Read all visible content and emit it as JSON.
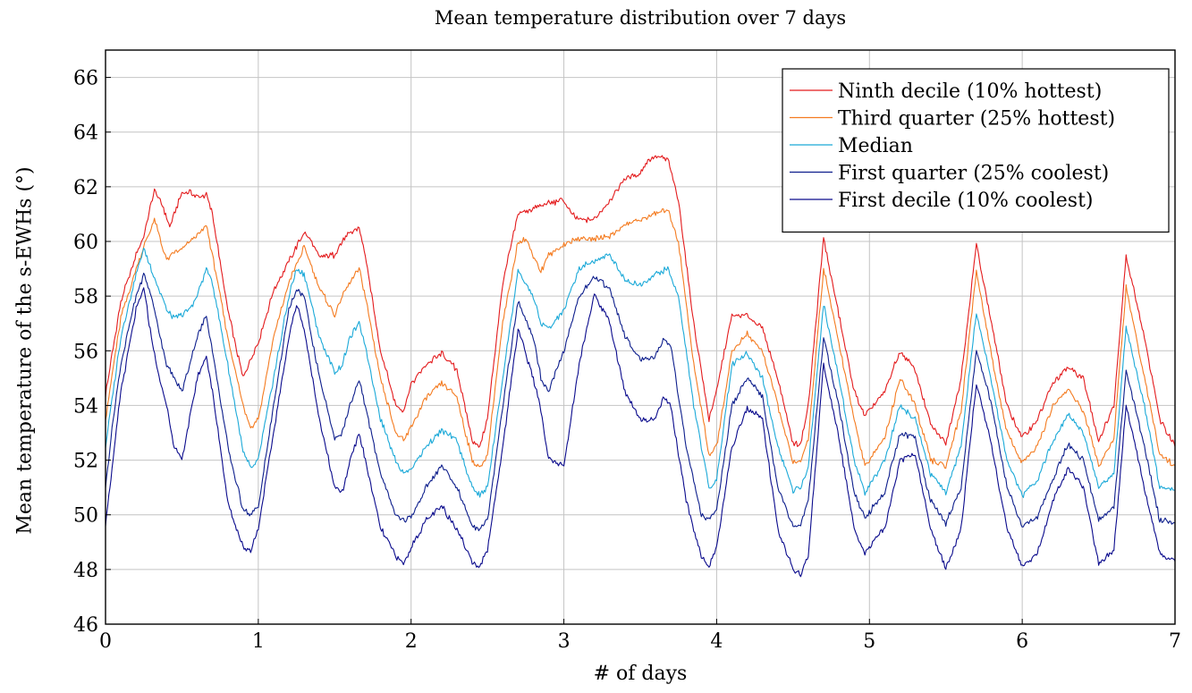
{
  "chart_data": {
    "type": "line",
    "title": "Mean temperature distribution over 7 days",
    "xlabel": "# of days",
    "ylabel": "Mean temperature of the s-EWHs (°)",
    "xlim": [
      0,
      7
    ],
    "ylim": [
      46,
      67
    ],
    "xticks": [
      0,
      1,
      2,
      3,
      4,
      5,
      6,
      7
    ],
    "yticks": [
      46,
      48,
      50,
      52,
      54,
      56,
      58,
      60,
      62,
      64,
      66
    ],
    "grid": true,
    "legend_position": "top-right",
    "series": [
      {
        "name": "Ninth decile (10% hottest)",
        "color": "#e31a1c",
        "x": [
          0,
          0.1,
          0.2,
          0.25,
          0.32,
          0.38,
          0.42,
          0.5,
          0.55,
          0.6,
          0.66,
          0.7,
          0.8,
          0.9,
          0.95,
          1.0,
          1.1,
          1.2,
          1.3,
          1.35,
          1.4,
          1.45,
          1.5,
          1.55,
          1.6,
          1.66,
          1.7,
          1.8,
          1.9,
          1.95,
          2.0,
          2.1,
          2.2,
          2.3,
          2.4,
          2.45,
          2.5,
          2.6,
          2.7,
          2.8,
          2.9,
          3.0,
          3.05,
          3.1,
          3.2,
          3.3,
          3.4,
          3.5,
          3.55,
          3.6,
          3.68,
          3.75,
          3.85,
          3.95,
          4.0,
          4.05,
          4.1,
          4.2,
          4.3,
          4.4,
          4.5,
          4.55,
          4.6,
          4.7,
          4.8,
          4.9,
          4.97,
          5.1,
          5.2,
          5.3,
          5.4,
          5.5,
          5.6,
          5.7,
          5.8,
          5.9,
          6.0,
          6.1,
          6.2,
          6.3,
          6.4,
          6.5,
          6.6,
          6.68,
          6.8,
          6.9,
          7.0
        ],
        "values": [
          54.4,
          57.8,
          59.5,
          60.2,
          61.9,
          61.2,
          60.5,
          61.8,
          61.8,
          61.6,
          61.7,
          61.0,
          57.5,
          55.0,
          55.7,
          56.3,
          58.2,
          59.3,
          60.3,
          60.0,
          59.4,
          59.5,
          59.5,
          60.0,
          60.3,
          60.5,
          59.5,
          56.0,
          54.0,
          53.8,
          54.8,
          55.5,
          55.9,
          55.3,
          52.7,
          52.5,
          53.5,
          58.5,
          61.0,
          61.2,
          61.4,
          61.5,
          61.0,
          60.8,
          60.8,
          61.5,
          62.3,
          62.5,
          63.0,
          63.1,
          63.0,
          61.5,
          57.0,
          53.5,
          54.5,
          56.0,
          57.3,
          57.3,
          56.8,
          55.0,
          52.6,
          52.6,
          54.0,
          60.1,
          57.3,
          54.5,
          53.6,
          54.5,
          56.0,
          55.3,
          53.3,
          52.6,
          55.0,
          59.9,
          57.0,
          54.0,
          52.8,
          53.5,
          54.8,
          55.4,
          55.0,
          52.7,
          54.0,
          59.5,
          56.5,
          53.5,
          52.5
        ]
      },
      {
        "name": "Third quarter (25% hottest)",
        "color": "#f47b20",
        "x": [
          0,
          0.1,
          0.2,
          0.25,
          0.32,
          0.4,
          0.45,
          0.5,
          0.55,
          0.6,
          0.66,
          0.7,
          0.8,
          0.9,
          0.95,
          1.0,
          1.1,
          1.2,
          1.3,
          1.4,
          1.45,
          1.5,
          1.55,
          1.6,
          1.66,
          1.7,
          1.8,
          1.9,
          1.95,
          2.0,
          2.1,
          2.2,
          2.3,
          2.4,
          2.45,
          2.5,
          2.6,
          2.7,
          2.75,
          2.8,
          2.85,
          2.9,
          3.0,
          3.1,
          3.2,
          3.3,
          3.4,
          3.5,
          3.6,
          3.68,
          3.75,
          3.85,
          3.95,
          4.0,
          4.1,
          4.2,
          4.3,
          4.4,
          4.5,
          4.55,
          4.6,
          4.7,
          4.8,
          4.9,
          4.97,
          5.1,
          5.2,
          5.3,
          5.4,
          5.5,
          5.6,
          5.7,
          5.8,
          5.9,
          6.0,
          6.1,
          6.2,
          6.3,
          6.4,
          6.5,
          6.6,
          6.68,
          6.8,
          6.9,
          7.0
        ],
        "values": [
          53.5,
          57.2,
          59.0,
          59.8,
          60.8,
          59.3,
          59.6,
          59.7,
          60.0,
          60.2,
          60.6,
          59.5,
          56.5,
          54.0,
          53.2,
          53.5,
          56.5,
          58.5,
          59.8,
          58.3,
          57.8,
          57.3,
          58.0,
          58.5,
          59.0,
          58.0,
          55.0,
          53.0,
          52.7,
          53.2,
          54.3,
          54.8,
          54.3,
          52.0,
          51.7,
          52.2,
          57.0,
          60.0,
          60.1,
          59.5,
          58.9,
          59.5,
          59.9,
          60.1,
          60.1,
          60.2,
          60.6,
          60.8,
          61.0,
          61.2,
          60.0,
          55.5,
          52.2,
          52.5,
          56.0,
          56.6,
          56.0,
          54.0,
          51.9,
          51.9,
          52.8,
          59.0,
          56.3,
          53.5,
          51.8,
          52.8,
          55.0,
          54.0,
          52.0,
          51.8,
          53.8,
          58.9,
          55.8,
          53.0,
          51.9,
          52.5,
          54.0,
          54.6,
          53.8,
          51.8,
          52.8,
          58.3,
          55.0,
          52.2,
          51.8
        ]
      },
      {
        "name": "Median",
        "color": "#1ba9d8",
        "x": [
          0,
          0.1,
          0.2,
          0.25,
          0.3,
          0.4,
          0.45,
          0.5,
          0.55,
          0.6,
          0.66,
          0.7,
          0.8,
          0.9,
          0.95,
          1.0,
          1.1,
          1.2,
          1.25,
          1.3,
          1.4,
          1.5,
          1.55,
          1.6,
          1.66,
          1.7,
          1.8,
          1.9,
          1.95,
          2.0,
          2.1,
          2.2,
          2.3,
          2.4,
          2.45,
          2.5,
          2.6,
          2.7,
          2.8,
          2.85,
          2.9,
          3.0,
          3.1,
          3.2,
          3.3,
          3.4,
          3.5,
          3.6,
          3.68,
          3.75,
          3.85,
          3.95,
          4.0,
          4.1,
          4.2,
          4.3,
          4.4,
          4.5,
          4.55,
          4.6,
          4.7,
          4.8,
          4.9,
          4.97,
          5.1,
          5.2,
          5.3,
          5.4,
          5.5,
          5.6,
          5.7,
          5.8,
          5.9,
          6.0,
          6.1,
          6.2,
          6.3,
          6.4,
          6.5,
          6.6,
          6.68,
          6.8,
          6.9,
          7.0
        ],
        "values": [
          52.5,
          56.5,
          58.8,
          59.7,
          59.0,
          57.5,
          57.2,
          57.3,
          57.5,
          58.0,
          59.0,
          58.5,
          55.5,
          52.3,
          51.7,
          52.0,
          55.0,
          58.0,
          59.0,
          58.8,
          56.5,
          55.2,
          55.5,
          56.5,
          57.0,
          56.2,
          53.5,
          52.0,
          51.5,
          51.7,
          52.5,
          53.1,
          52.7,
          51.0,
          50.7,
          51.0,
          55.0,
          58.9,
          58.0,
          57.0,
          56.8,
          57.5,
          59.0,
          59.3,
          59.5,
          58.6,
          58.4,
          58.8,
          59.0,
          58.0,
          54.0,
          51.0,
          51.3,
          55.5,
          55.9,
          55.0,
          52.5,
          50.9,
          51.0,
          51.8,
          57.7,
          55.0,
          52.0,
          50.8,
          52.0,
          54.0,
          53.5,
          51.5,
          50.8,
          52.5,
          57.4,
          54.8,
          52.0,
          50.7,
          51.3,
          52.7,
          53.7,
          53.0,
          51.0,
          51.5,
          56.9,
          54.0,
          51.0,
          50.9
        ]
      },
      {
        "name": "First quarter (25% coolest)",
        "color": "#0d1e8c",
        "x": [
          0,
          0.05,
          0.1,
          0.2,
          0.25,
          0.3,
          0.4,
          0.5,
          0.55,
          0.6,
          0.66,
          0.7,
          0.8,
          0.9,
          0.95,
          1.0,
          1.1,
          1.2,
          1.25,
          1.3,
          1.4,
          1.5,
          1.55,
          1.6,
          1.66,
          1.7,
          1.8,
          1.9,
          1.95,
          2.0,
          2.1,
          2.2,
          2.3,
          2.4,
          2.45,
          2.5,
          2.6,
          2.7,
          2.8,
          2.85,
          2.9,
          3.0,
          3.1,
          3.2,
          3.3,
          3.4,
          3.5,
          3.6,
          3.65,
          3.7,
          3.8,
          3.9,
          3.95,
          4.0,
          4.1,
          4.2,
          4.3,
          4.4,
          4.5,
          4.55,
          4.6,
          4.7,
          4.8,
          4.9,
          4.97,
          5.1,
          5.2,
          5.3,
          5.4,
          5.5,
          5.6,
          5.7,
          5.8,
          5.9,
          6.0,
          6.1,
          6.2,
          6.3,
          6.4,
          6.5,
          6.6,
          6.68,
          6.8,
          6.9,
          7.0
        ],
        "values": [
          51.0,
          53.5,
          55.5,
          58.0,
          58.8,
          58.0,
          55.5,
          54.5,
          55.5,
          56.5,
          57.3,
          56.0,
          52.5,
          50.2,
          50.0,
          50.3,
          54.0,
          57.5,
          58.2,
          58.0,
          55.0,
          52.8,
          53.0,
          54.0,
          54.9,
          54.0,
          51.5,
          50.0,
          49.8,
          49.9,
          51.0,
          51.8,
          51.0,
          49.6,
          49.5,
          49.8,
          54.0,
          57.8,
          56.5,
          55.0,
          54.5,
          56.0,
          58.0,
          58.7,
          58.3,
          56.5,
          55.7,
          55.8,
          56.4,
          56.2,
          52.5,
          50.0,
          49.8,
          50.2,
          54.0,
          55.0,
          54.3,
          51.0,
          49.6,
          49.6,
          50.5,
          56.5,
          54.0,
          50.8,
          49.9,
          50.8,
          53.0,
          52.8,
          50.5,
          49.7,
          51.0,
          56.0,
          54.0,
          51.0,
          49.6,
          49.9,
          51.3,
          52.6,
          52.0,
          49.8,
          50.3,
          55.3,
          52.5,
          49.8,
          49.7
        ]
      },
      {
        "name": "First decile (10% coolest)",
        "color": "#0a0a8c",
        "x": [
          0,
          0.05,
          0.1,
          0.2,
          0.25,
          0.3,
          0.35,
          0.4,
          0.45,
          0.5,
          0.55,
          0.6,
          0.66,
          0.7,
          0.8,
          0.9,
          0.95,
          1.0,
          1.1,
          1.2,
          1.25,
          1.3,
          1.4,
          1.5,
          1.55,
          1.6,
          1.66,
          1.7,
          1.8,
          1.9,
          1.95,
          2.0,
          2.1,
          2.2,
          2.3,
          2.4,
          2.45,
          2.5,
          2.6,
          2.7,
          2.8,
          2.85,
          2.9,
          3.0,
          3.1,
          3.2,
          3.3,
          3.4,
          3.5,
          3.6,
          3.65,
          3.7,
          3.8,
          3.9,
          3.95,
          4.0,
          4.1,
          4.2,
          4.3,
          4.4,
          4.5,
          4.55,
          4.6,
          4.7,
          4.8,
          4.9,
          4.97,
          5.1,
          5.2,
          5.3,
          5.4,
          5.5,
          5.6,
          5.7,
          5.8,
          5.9,
          6.0,
          6.1,
          6.2,
          6.3,
          6.4,
          6.5,
          6.6,
          6.68,
          6.8,
          6.9,
          7.0
        ],
        "values": [
          49.7,
          52.0,
          54.5,
          57.5,
          58.3,
          56.5,
          55.0,
          54.0,
          52.5,
          52.0,
          53.5,
          55.0,
          55.8,
          54.5,
          50.5,
          48.8,
          48.7,
          49.5,
          53.0,
          56.5,
          57.7,
          56.8,
          53.5,
          51.0,
          50.8,
          52.0,
          53.0,
          52.0,
          49.5,
          48.5,
          48.2,
          48.8,
          49.8,
          50.3,
          49.5,
          48.3,
          48.1,
          48.7,
          52.5,
          56.8,
          55.0,
          53.8,
          52.0,
          51.8,
          55.5,
          58.1,
          57.0,
          54.5,
          53.5,
          53.5,
          54.3,
          54.0,
          50.5,
          48.5,
          48.1,
          48.8,
          52.5,
          53.9,
          53.5,
          49.5,
          48.0,
          47.8,
          48.5,
          55.5,
          52.8,
          49.5,
          48.6,
          49.5,
          52.0,
          52.2,
          49.5,
          48.0,
          49.5,
          54.8,
          52.5,
          49.5,
          48.1,
          48.6,
          50.5,
          51.7,
          51.0,
          48.2,
          48.7,
          54.0,
          51.0,
          48.6,
          48.3
        ]
      }
    ]
  }
}
